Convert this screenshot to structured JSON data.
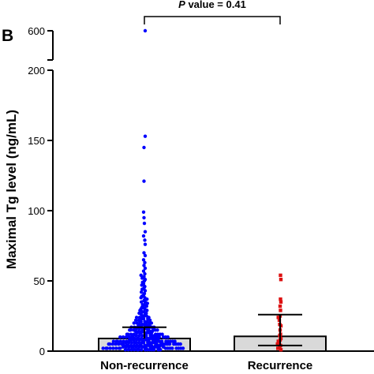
{
  "chart_data": {
    "type": "scatter",
    "panel_label": "B",
    "ylabel": "Maximal Tg level (ng/mL)",
    "categories": [
      "Non-recurrence",
      "Recurrence"
    ],
    "y_axis": {
      "segments": [
        {
          "range": [
            0,
            200
          ],
          "ticks": [
            0,
            50,
            100,
            150,
            200
          ],
          "tick_labels": [
            "0",
            "50",
            "100",
            "150",
            "200"
          ]
        },
        {
          "range": [
            600,
            600
          ],
          "ticks": [
            600
          ],
          "tick_labels": [
            "600"
          ]
        }
      ],
      "break": true
    },
    "annotation": {
      "prefix": "P",
      "text": " value = 0.41",
      "between": [
        "Non-recurrence",
        "Recurrence"
      ]
    },
    "series": [
      {
        "name": "Non-recurrence",
        "color": "#0000ff",
        "bar_value": 9,
        "error_upper": 17,
        "points": [
          550,
          153,
          145,
          121,
          99,
          95,
          91,
          85,
          82,
          79,
          76,
          70,
          68,
          65,
          63,
          61,
          59,
          57,
          55,
          54,
          53,
          52,
          51,
          50,
          49,
          48,
          47,
          46,
          45,
          44,
          43,
          42,
          41,
          40,
          39,
          38,
          38,
          37,
          36,
          35,
          35,
          34,
          33,
          33,
          32,
          31,
          31,
          30,
          30,
          29,
          29,
          28,
          28,
          27,
          27,
          26,
          26,
          25,
          25,
          25,
          24,
          24,
          24,
          23,
          23,
          23,
          22,
          22,
          22,
          21,
          21,
          21,
          21,
          20,
          20,
          20,
          20,
          19,
          19,
          19,
          19,
          18,
          18,
          18,
          18,
          18,
          17,
          17,
          17,
          17,
          17,
          16,
          16,
          16,
          16,
          16,
          16,
          15,
          15,
          15,
          15,
          15,
          15,
          14,
          14,
          14,
          14,
          14,
          14,
          14,
          13,
          13,
          13,
          13,
          13,
          13,
          13,
          12,
          12,
          12,
          12,
          12,
          12,
          12,
          12,
          11,
          11,
          11,
          11,
          11,
          11,
          11,
          11,
          11,
          10,
          10,
          10,
          10,
          10,
          10,
          10,
          10,
          10,
          10,
          9,
          9,
          9,
          9,
          9,
          9,
          9,
          9,
          9,
          9,
          9,
          8,
          8,
          8,
          8,
          8,
          8,
          8,
          8,
          8,
          8,
          8,
          8,
          7,
          7,
          7,
          7,
          7,
          7,
          7,
          7,
          7,
          7,
          7,
          7,
          7,
          6,
          6,
          6,
          6,
          6,
          6,
          6,
          6,
          6,
          6,
          6,
          6,
          6,
          6,
          5,
          5,
          5,
          5,
          5,
          5,
          5,
          5,
          5,
          5,
          5,
          5,
          5,
          5,
          5,
          4,
          4,
          4,
          4,
          4,
          4,
          4,
          4,
          4,
          4,
          4,
          4,
          4,
          4,
          4,
          4,
          3,
          3,
          3,
          3,
          3,
          3,
          3,
          3,
          3,
          3,
          3,
          3,
          3,
          3,
          3,
          3,
          2,
          2,
          2,
          2,
          2,
          2,
          2,
          2,
          2,
          2,
          2,
          2,
          2,
          2,
          2,
          2,
          1,
          1,
          1,
          1,
          1,
          1,
          1,
          1,
          1,
          1,
          1,
          1,
          1,
          1
        ]
      },
      {
        "name": "Recurrence",
        "color": "#dd1111",
        "bar_value": 10.5,
        "error_upper": 26,
        "error_lower": 4,
        "points": [
          54,
          51,
          37,
          35,
          32,
          29,
          25,
          24,
          22,
          19,
          18,
          15,
          12,
          11,
          9,
          8,
          7,
          6,
          5,
          4,
          3,
          2,
          1
        ]
      }
    ]
  }
}
